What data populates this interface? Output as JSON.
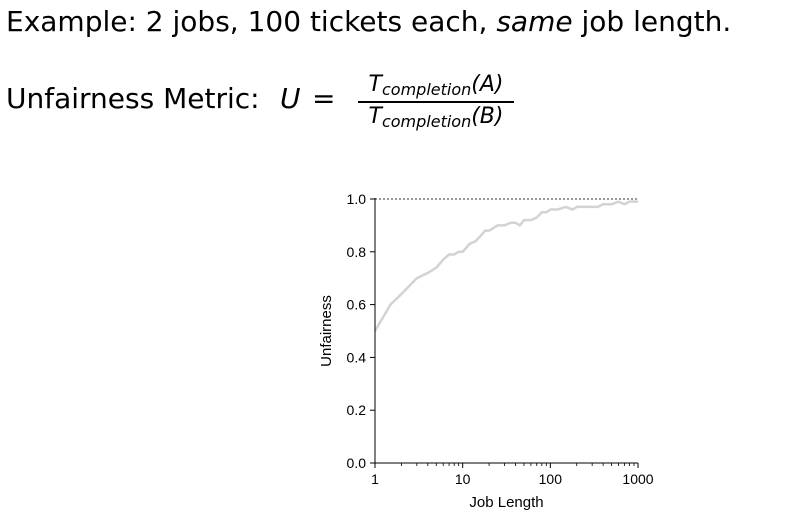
{
  "slide": {
    "line1_prefix": "Example: 2 jobs, 100 tickets each, ",
    "line1_emph": "same",
    "line1_suffix": " job length.",
    "metric_label": "Unfairness Metric:",
    "metric_var": "U",
    "metric_eq": "=",
    "frac_num_T": "T",
    "frac_num_sub": "completion",
    "frac_num_arg": "(A)",
    "frac_den_T": "T",
    "frac_den_sub": "completion",
    "frac_den_arg": "(B)"
  },
  "chart_data": {
    "type": "line",
    "title": "",
    "xlabel": "Job Length",
    "ylabel": "Unfairness",
    "xscale": "log",
    "xlim": [
      1,
      1000
    ],
    "ylim": [
      0,
      1.0
    ],
    "xticks": [
      "1",
      "10",
      "100",
      "1000"
    ],
    "yticks": [
      "0.0",
      "0.2",
      "0.4",
      "0.6",
      "0.8",
      "1.0"
    ],
    "reference_line": {
      "y": 1.0,
      "style": "dotted"
    },
    "line_color": "#d3d3d3",
    "x": [
      1,
      1.5,
      2,
      3,
      4,
      5,
      6,
      7,
      8,
      9,
      10,
      12,
      14,
      16,
      18,
      20,
      25,
      30,
      35,
      40,
      45,
      50,
      60,
      70,
      80,
      90,
      100,
      120,
      150,
      180,
      200,
      250,
      300,
      350,
      400,
      450,
      500,
      600,
      700,
      800,
      900,
      1000
    ],
    "y": [
      0.5,
      0.6,
      0.64,
      0.7,
      0.72,
      0.74,
      0.77,
      0.79,
      0.79,
      0.8,
      0.8,
      0.83,
      0.84,
      0.86,
      0.88,
      0.88,
      0.9,
      0.9,
      0.91,
      0.91,
      0.9,
      0.92,
      0.92,
      0.93,
      0.95,
      0.95,
      0.96,
      0.96,
      0.97,
      0.96,
      0.97,
      0.97,
      0.97,
      0.97,
      0.98,
      0.98,
      0.98,
      0.99,
      0.98,
      0.99,
      0.99,
      0.99
    ]
  }
}
